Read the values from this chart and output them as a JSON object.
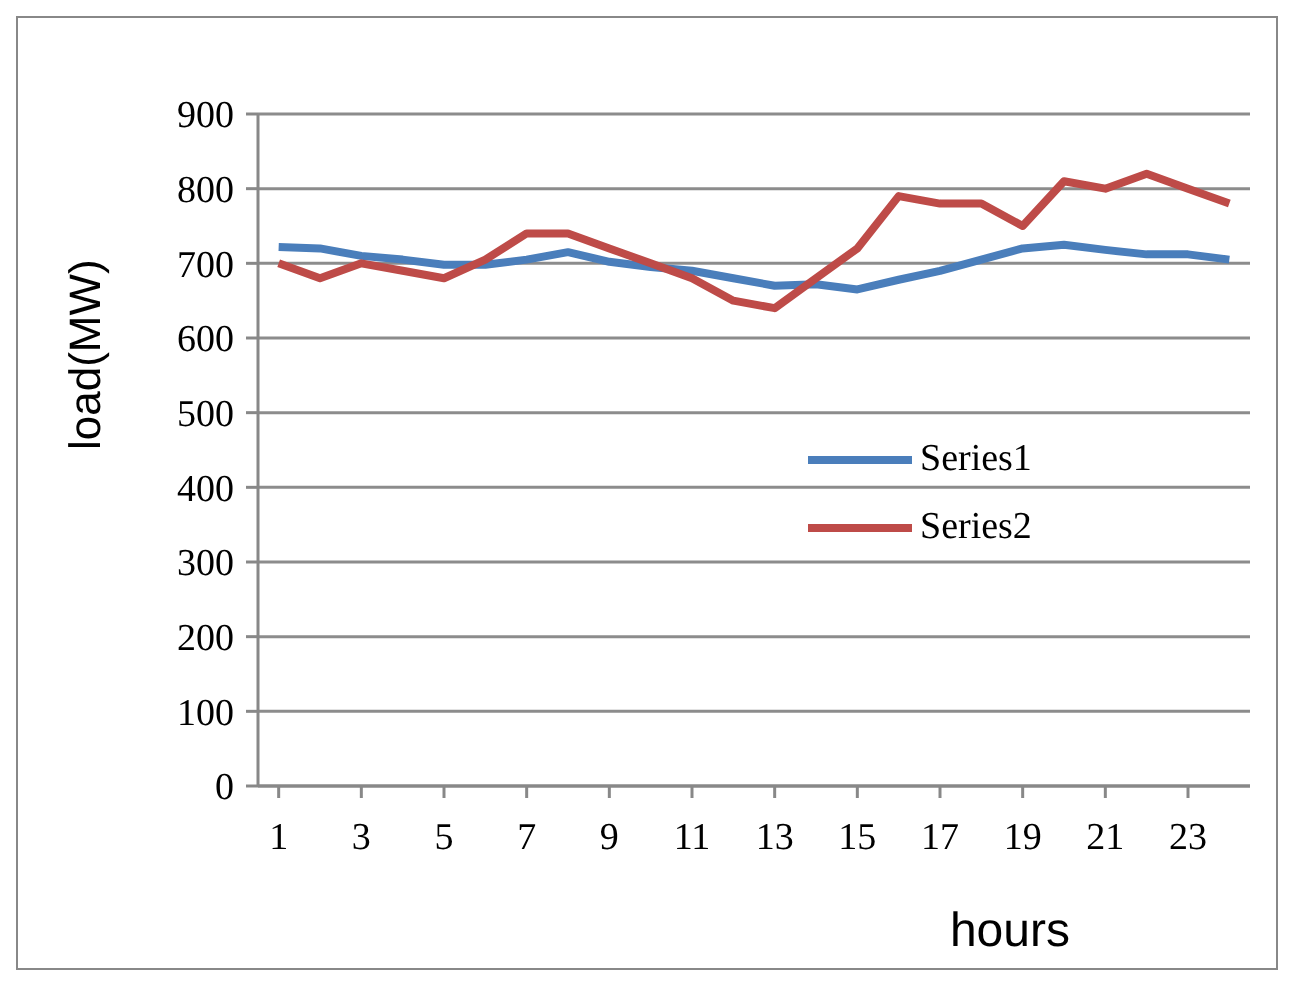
{
  "chart_data": {
    "type": "line",
    "xlabel": "hours",
    "ylabel": "load(MW)",
    "x": [
      1,
      2,
      3,
      4,
      5,
      6,
      7,
      8,
      9,
      10,
      11,
      12,
      13,
      14,
      15,
      16,
      17,
      18,
      19,
      20,
      21,
      22,
      23,
      24
    ],
    "xlim": [
      0.5,
      24.5
    ],
    "xticks": [
      1,
      3,
      5,
      7,
      9,
      11,
      13,
      15,
      17,
      19,
      21,
      23
    ],
    "series": [
      {
        "name": "Series1",
        "color": "#4a7ebb",
        "values": [
          722,
          720,
          710,
          705,
          698,
          698,
          705,
          715,
          702,
          695,
          690,
          680,
          670,
          672,
          665,
          678,
          690,
          705,
          720,
          725,
          718,
          712,
          712,
          705
        ]
      },
      {
        "name": "Series2",
        "color": "#be4b48",
        "values": [
          700,
          680,
          700,
          690,
          680,
          705,
          740,
          740,
          720,
          700,
          680,
          650,
          640,
          680,
          720,
          790,
          780,
          780,
          750,
          810,
          800,
          820,
          800,
          780
        ]
      }
    ],
    "ylim": [
      0,
      900
    ],
    "yticks": [
      0,
      100,
      200,
      300,
      400,
      500,
      600,
      700,
      800,
      900
    ],
    "grid": "y",
    "legend": "right",
    "marker": "none",
    "line_style": "solid"
  }
}
